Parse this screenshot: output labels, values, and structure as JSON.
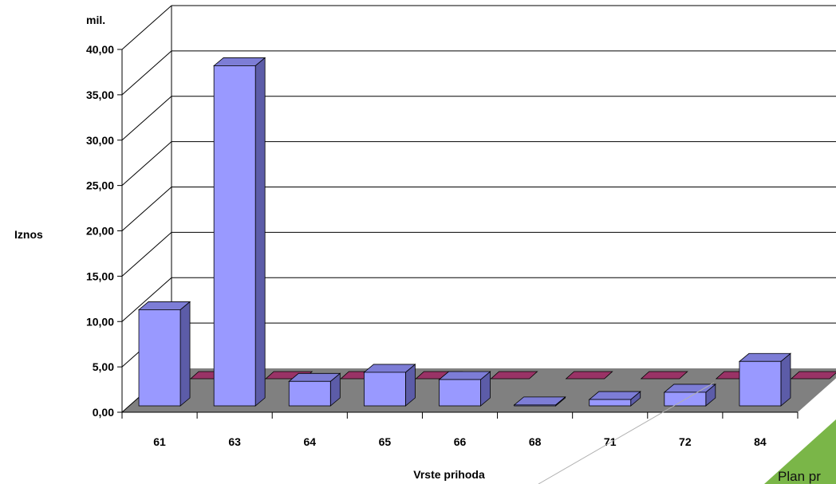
{
  "chart_data": {
    "type": "bar",
    "categories": [
      "61",
      "63",
      "64",
      "65",
      "66",
      "68",
      "71",
      "72",
      "84"
    ],
    "series": [
      {
        "values": [
          0.0,
          0.0,
          0.0,
          0.0,
          0.0,
          0.0,
          0.0,
          0.0,
          0.0
        ]
      },
      {
        "values": [
          10.6,
          37.5,
          2.7,
          3.7,
          2.9,
          0.1,
          0.7,
          1.5,
          4.9
        ]
      }
    ],
    "xlabel": "Vrste prihoda",
    "ylabel": "Iznos",
    "unit_label": "mil.",
    "ylim": [
      0,
      40
    ],
    "yticks": [
      "0,00",
      "5,00",
      "10,00",
      "15,00",
      "20,00",
      "25,00",
      "30,00",
      "35,00",
      "40,00"
    ],
    "grid": true,
    "legend": "none",
    "colors": {
      "bar_front": "#9999ff",
      "bar_side": "#5c5ca8",
      "bar_top": "#7d7dd6",
      "back_series": "#993366",
      "floor": "#808080"
    }
  },
  "corner": {
    "text": "Plan pr",
    "accent": "#7ab648"
  }
}
